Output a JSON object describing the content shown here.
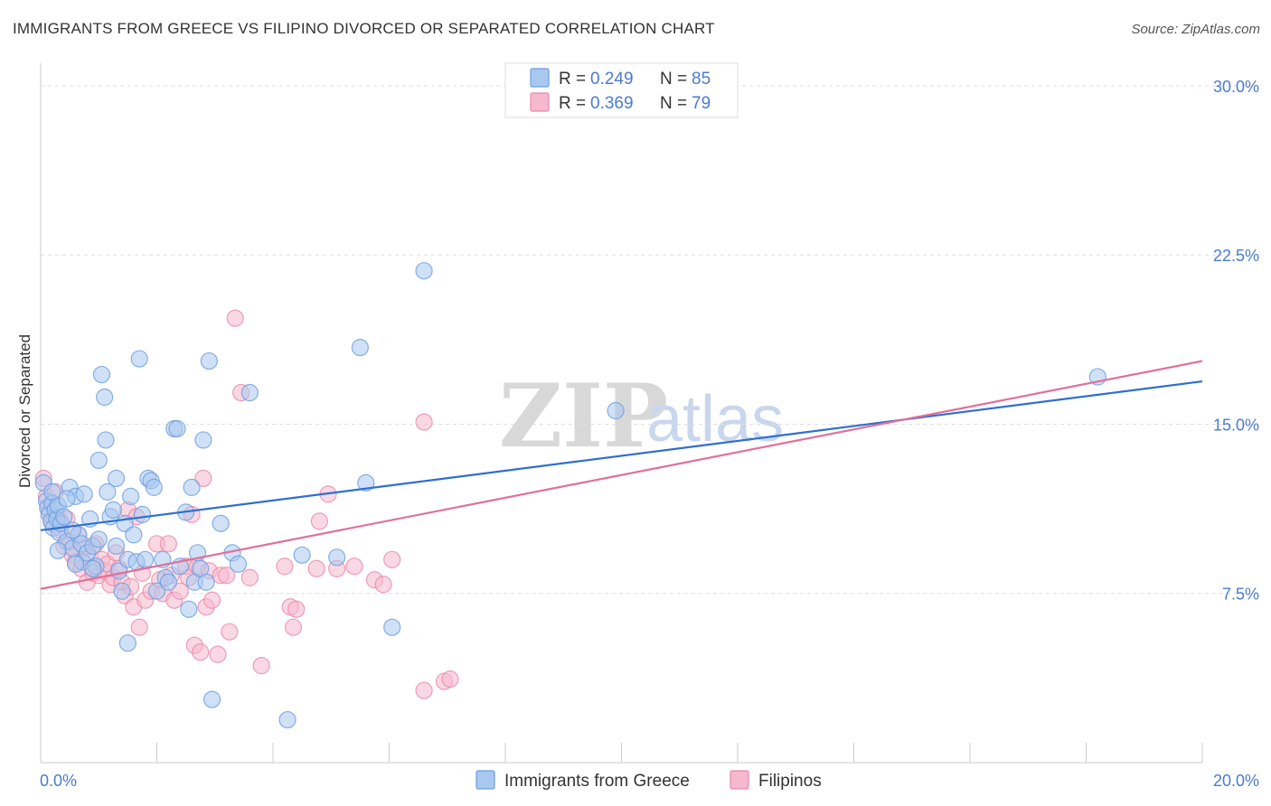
{
  "title": "IMMIGRANTS FROM GREECE VS FILIPINO DIVORCED OR SEPARATED CORRELATION CHART",
  "source": "Source: ZipAtlas.com",
  "watermark": {
    "zip": "ZIP",
    "atlas": "atlas"
  },
  "colors": {
    "greece_fill": "#a9c8f0",
    "greece_stroke": "#6a9ee0",
    "greece_line": "#2f6fd0",
    "filipino_fill": "#f5b8cc",
    "filipino_stroke": "#e889a8",
    "filipino_line": "#e0709a",
    "axis_label": "#4a7bd0",
    "grid": "#dddddd"
  },
  "legend": {
    "rows": [
      {
        "r_label": "R = ",
        "r_value": "0.249",
        "n_label": "N = ",
        "n_value": "85"
      },
      {
        "r_label": "R = ",
        "r_value": "0.369",
        "n_label": "N = ",
        "n_value": "79"
      }
    ]
  },
  "chart_data": {
    "type": "scatter",
    "title": "IMMIGRANTS FROM GREECE VS FILIPINO DIVORCED OR SEPARATED CORRELATION CHART",
    "xlabel": "",
    "ylabel": "Divorced or Separated",
    "xlim": [
      0,
      20
    ],
    "ylim": [
      0,
      31
    ],
    "x_tick_labels": [
      "0.0%",
      "20.0%"
    ],
    "y_ticks": [
      7.5,
      15.0,
      22.5,
      30.0
    ],
    "y_tick_labels": [
      "7.5%",
      "15.0%",
      "22.5%",
      "30.0%"
    ],
    "series": [
      {
        "name": "Immigrants from Greece",
        "trend": {
          "x": [
            0,
            20
          ],
          "y": [
            10.3,
            16.9
          ]
        },
        "points": [
          [
            0.05,
            12.4
          ],
          [
            0.1,
            11.6
          ],
          [
            0.12,
            11.3
          ],
          [
            0.15,
            11.0
          ],
          [
            0.18,
            10.7
          ],
          [
            0.2,
            11.5
          ],
          [
            0.22,
            10.4
          ],
          [
            0.25,
            11.2
          ],
          [
            0.28,
            10.8
          ],
          [
            0.3,
            11.4
          ],
          [
            0.32,
            10.2
          ],
          [
            0.35,
            10.6
          ],
          [
            0.4,
            10.9
          ],
          [
            0.45,
            9.8
          ],
          [
            0.5,
            12.2
          ],
          [
            0.55,
            9.5
          ],
          [
            0.6,
            11.8
          ],
          [
            0.65,
            10.1
          ],
          [
            0.7,
            9.7
          ],
          [
            0.72,
            8.9
          ],
          [
            0.75,
            11.9
          ],
          [
            0.8,
            9.3
          ],
          [
            0.85,
            10.8
          ],
          [
            0.9,
            9.6
          ],
          [
            0.95,
            8.7
          ],
          [
            1.0,
            13.4
          ],
          [
            1.05,
            17.2
          ],
          [
            1.1,
            16.2
          ],
          [
            1.12,
            14.3
          ],
          [
            1.15,
            12.0
          ],
          [
            1.2,
            10.9
          ],
          [
            1.25,
            11.2
          ],
          [
            1.3,
            12.6
          ],
          [
            1.35,
            8.5
          ],
          [
            1.4,
            7.6
          ],
          [
            1.45,
            10.6
          ],
          [
            1.5,
            9.0
          ],
          [
            1.55,
            11.8
          ],
          [
            1.6,
            10.1
          ],
          [
            1.65,
            8.9
          ],
          [
            1.7,
            17.9
          ],
          [
            1.75,
            11.0
          ],
          [
            1.8,
            9.0
          ],
          [
            1.85,
            12.6
          ],
          [
            1.9,
            12.5
          ],
          [
            1.95,
            12.2
          ],
          [
            2.0,
            7.6
          ],
          [
            2.1,
            9.0
          ],
          [
            2.15,
            8.2
          ],
          [
            2.2,
            8.0
          ],
          [
            2.3,
            14.8
          ],
          [
            2.35,
            14.8
          ],
          [
            2.4,
            8.7
          ],
          [
            2.5,
            11.1
          ],
          [
            2.55,
            6.8
          ],
          [
            2.6,
            12.2
          ],
          [
            2.65,
            8.0
          ],
          [
            2.7,
            9.3
          ],
          [
            2.75,
            8.6
          ],
          [
            2.8,
            14.3
          ],
          [
            2.85,
            8.0
          ],
          [
            2.9,
            17.8
          ],
          [
            2.95,
            2.8
          ],
          [
            3.1,
            10.6
          ],
          [
            3.3,
            9.3
          ],
          [
            3.4,
            8.8
          ],
          [
            3.6,
            16.4
          ],
          [
            4.25,
            1.9
          ],
          [
            4.5,
            9.2
          ],
          [
            5.1,
            9.1
          ],
          [
            5.5,
            18.4
          ],
          [
            5.6,
            12.4
          ],
          [
            6.05,
            6.0
          ],
          [
            6.6,
            21.8
          ],
          [
            9.9,
            15.6
          ],
          [
            18.2,
            17.1
          ],
          [
            1.5,
            5.3
          ],
          [
            0.3,
            9.4
          ],
          [
            0.6,
            8.8
          ],
          [
            0.9,
            8.6
          ],
          [
            1.0,
            9.9
          ],
          [
            1.3,
            9.6
          ],
          [
            0.45,
            11.7
          ],
          [
            0.2,
            12.0
          ],
          [
            0.55,
            10.3
          ]
        ]
      },
      {
        "name": "Filipinos",
        "trend": {
          "x": [
            0,
            20
          ],
          "y": [
            7.7,
            17.8
          ]
        },
        "points": [
          [
            0.05,
            12.6
          ],
          [
            0.1,
            11.8
          ],
          [
            0.15,
            11.2
          ],
          [
            0.2,
            10.6
          ],
          [
            0.25,
            12.0
          ],
          [
            0.3,
            10.9
          ],
          [
            0.35,
            10.3
          ],
          [
            0.4,
            9.6
          ],
          [
            0.45,
            10.8
          ],
          [
            0.5,
            9.8
          ],
          [
            0.55,
            9.2
          ],
          [
            0.6,
            8.9
          ],
          [
            0.65,
            10.1
          ],
          [
            0.7,
            8.6
          ],
          [
            0.75,
            9.5
          ],
          [
            0.8,
            8.0
          ],
          [
            0.85,
            9.1
          ],
          [
            0.9,
            8.4
          ],
          [
            0.95,
            9.7
          ],
          [
            1.0,
            8.3
          ],
          [
            1.05,
            9.0
          ],
          [
            1.1,
            8.5
          ],
          [
            1.15,
            8.8
          ],
          [
            1.2,
            7.9
          ],
          [
            1.25,
            8.2
          ],
          [
            1.3,
            9.3
          ],
          [
            1.35,
            8.6
          ],
          [
            1.4,
            8.0
          ],
          [
            1.45,
            7.4
          ],
          [
            1.5,
            11.2
          ],
          [
            1.55,
            7.8
          ],
          [
            1.6,
            6.9
          ],
          [
            1.65,
            10.9
          ],
          [
            1.7,
            6.0
          ],
          [
            1.75,
            8.4
          ],
          [
            1.8,
            7.2
          ],
          [
            1.9,
            7.6
          ],
          [
            2.0,
            9.7
          ],
          [
            2.05,
            8.1
          ],
          [
            2.1,
            7.5
          ],
          [
            2.2,
            9.7
          ],
          [
            2.25,
            8.3
          ],
          [
            2.3,
            7.2
          ],
          [
            2.4,
            7.6
          ],
          [
            2.5,
            8.7
          ],
          [
            2.55,
            8.2
          ],
          [
            2.6,
            11.0
          ],
          [
            2.65,
            5.2
          ],
          [
            2.7,
            8.7
          ],
          [
            2.75,
            4.9
          ],
          [
            2.8,
            12.6
          ],
          [
            2.85,
            6.9
          ],
          [
            2.9,
            8.5
          ],
          [
            2.95,
            7.2
          ],
          [
            3.05,
            4.8
          ],
          [
            3.1,
            8.3
          ],
          [
            3.2,
            8.3
          ],
          [
            3.25,
            5.8
          ],
          [
            3.35,
            19.7
          ],
          [
            3.45,
            16.4
          ],
          [
            3.6,
            8.2
          ],
          [
            3.8,
            4.3
          ],
          [
            4.2,
            8.7
          ],
          [
            4.3,
            6.9
          ],
          [
            4.35,
            6.0
          ],
          [
            4.4,
            6.8
          ],
          [
            4.75,
            8.6
          ],
          [
            4.8,
            10.7
          ],
          [
            4.95,
            11.9
          ],
          [
            5.1,
            8.6
          ],
          [
            5.4,
            8.7
          ],
          [
            5.75,
            8.1
          ],
          [
            5.9,
            7.9
          ],
          [
            6.05,
            9.0
          ],
          [
            6.6,
            15.1
          ],
          [
            6.6,
            3.2
          ],
          [
            6.95,
            3.6
          ],
          [
            7.05,
            3.7
          ],
          [
            11.7,
            29.3
          ]
        ]
      }
    ]
  },
  "bottom_legend": {
    "items": [
      {
        "label": "Immigrants from Greece"
      },
      {
        "label": "Filipinos"
      }
    ]
  }
}
